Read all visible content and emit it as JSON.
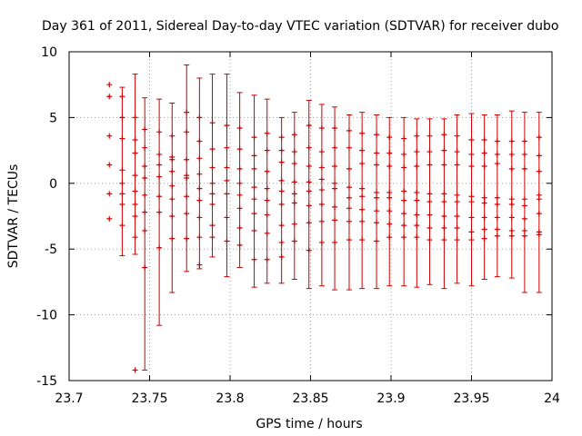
{
  "chart_data": {
    "type": "scatter",
    "title": "Day 361 of 2011, Sidereal Day-to-day VTEC variation (SDTVAR) for receiver dubo",
    "xlabel": "GPS time / hours",
    "ylabel": "SDTVAR / TECUs",
    "xlim": [
      23.7,
      24.0
    ],
    "ylim": [
      -15,
      10
    ],
    "xticks": [
      {
        "value": 23.7,
        "label": "23.7"
      },
      {
        "value": 23.75,
        "label": "23.75"
      },
      {
        "value": 23.8,
        "label": "23.8"
      },
      {
        "value": 23.85,
        "label": "23.85"
      },
      {
        "value": 23.9,
        "label": "23.9"
      },
      {
        "value": 23.95,
        "label": "23.95"
      },
      {
        "value": 24.0,
        "label": "24"
      }
    ],
    "yticks": [
      {
        "value": 10,
        "label": "10"
      },
      {
        "value": 5,
        "label": "5"
      },
      {
        "value": 0,
        "label": "0"
      },
      {
        "value": -5,
        "label": "-5"
      },
      {
        "value": -10,
        "label": "-10"
      },
      {
        "value": -15,
        "label": "-15"
      }
    ],
    "grid": true,
    "color": "#cc0000",
    "series": [
      {
        "x": 23.725,
        "low": 7.5,
        "high": 7.5,
        "points": [
          7.5,
          6.6,
          3.6,
          1.4,
          -0.8,
          -2.7
        ]
      },
      {
        "x": 23.733,
        "low": -5.5,
        "high": 7.3,
        "points": [
          6.6,
          5.0,
          3.4,
          1.0,
          0.0,
          -0.8,
          -1.6,
          -3.2
        ]
      },
      {
        "x": 23.741,
        "low": -5.4,
        "high": 8.3,
        "points": [
          5.0,
          3.3,
          2.3,
          0.6,
          -0.6,
          -1.6,
          -2.5,
          -4.1,
          -14.2
        ]
      },
      {
        "x": 23.747,
        "low": -14.2,
        "high": 6.5,
        "points": [
          4.1,
          2.7,
          1.3,
          0.4,
          -0.9,
          -2.2,
          -3.6,
          -6.4
        ]
      },
      {
        "x": 23.756,
        "low": -10.8,
        "high": 6.4,
        "points": [
          3.9,
          2.2,
          1.4,
          0.5,
          -1.0,
          -2.2,
          -4.9
        ]
      },
      {
        "x": 23.764,
        "low": -8.3,
        "high": 6.1,
        "points": [
          3.6,
          2.0,
          1.8,
          0.9,
          -0.2,
          -1.2,
          -2.5,
          -4.2
        ]
      },
      {
        "x": 23.773,
        "low": -6.7,
        "high": 9.0,
        "points": [
          5.4,
          3.9,
          1.8,
          0.6,
          0.4,
          -1.0,
          -2.3,
          -4.2
        ]
      },
      {
        "x": 23.781,
        "low": -6.5,
        "high": 8.0,
        "points": [
          5.0,
          3.2,
          1.9,
          0.7,
          -0.4,
          -1.3,
          -2.6,
          -4.1,
          -6.2
        ]
      },
      {
        "x": 23.789,
        "low": -5.6,
        "high": 8.3,
        "points": [
          4.6,
          2.6,
          1.2,
          0.0,
          -0.8,
          -1.6,
          -3.2,
          -4.1
        ]
      },
      {
        "x": 23.798,
        "low": -7.1,
        "high": 8.3,
        "points": [
          4.4,
          2.7,
          1.2,
          0.2,
          -0.8,
          -2.6,
          -4.4
        ]
      },
      {
        "x": 23.806,
        "low": -6.4,
        "high": 6.9,
        "points": [
          4.2,
          2.6,
          1.1,
          0.0,
          -0.9,
          -1.9,
          -3.4,
          -4.7
        ]
      },
      {
        "x": 23.815,
        "low": -7.9,
        "high": 6.7,
        "points": [
          3.5,
          2.1,
          1.1,
          -0.3,
          -1.2,
          -2.3,
          -3.6,
          -5.8
        ]
      },
      {
        "x": 23.823,
        "low": -7.6,
        "high": 6.4,
        "points": [
          3.8,
          2.5,
          0.9,
          -0.4,
          -1.3,
          -2.4,
          -3.8,
          -5.8
        ]
      },
      {
        "x": 23.832,
        "low": -7.6,
        "high": 5.0,
        "points": [
          3.5,
          2.5,
          1.6,
          0.2,
          -0.6,
          -1.6,
          -3.2,
          -4.5,
          -5.6
        ]
      },
      {
        "x": 23.84,
        "low": -7.3,
        "high": 5.4,
        "points": [
          3.7,
          2.4,
          1.5,
          0.1,
          -0.8,
          -1.5,
          -3.1,
          -4.4
        ]
      },
      {
        "x": 23.849,
        "low": -8.0,
        "high": 6.3,
        "points": [
          4.4,
          2.7,
          1.3,
          0.1,
          -0.6,
          -1.7,
          -3.0,
          -5.1
        ]
      },
      {
        "x": 23.857,
        "low": -7.8,
        "high": 6.0,
        "points": [
          4.2,
          2.4,
          1.2,
          0.3,
          -0.5,
          -1.6,
          -2.9,
          -4.5
        ]
      },
      {
        "x": 23.865,
        "low": -8.1,
        "high": 5.8,
        "points": [
          4.2,
          2.7,
          1.3,
          0.0,
          -0.4,
          -1.8,
          -2.8,
          -4.5
        ]
      },
      {
        "x": 23.874,
        "low": -8.1,
        "high": 5.2,
        "points": [
          4.0,
          2.7,
          1.1,
          -0.3,
          -1.1,
          -1.9,
          -2.9,
          -4.3
        ]
      },
      {
        "x": 23.882,
        "low": -8.0,
        "high": 5.4,
        "points": [
          3.8,
          2.5,
          1.5,
          -0.4,
          -1.0,
          -2.0,
          -2.9,
          -4.3
        ]
      },
      {
        "x": 23.891,
        "low": -8.0,
        "high": 5.2,
        "points": [
          3.7,
          2.3,
          1.4,
          -0.7,
          -1.1,
          -2.1,
          -3.0,
          -4.4
        ]
      },
      {
        "x": 23.899,
        "low": -7.8,
        "high": 5.0,
        "points": [
          3.5,
          2.3,
          1.3,
          -0.7,
          -1.1,
          -2.1,
          -3.1,
          -4.1
        ]
      },
      {
        "x": 23.908,
        "low": -7.8,
        "high": 5.0,
        "points": [
          3.4,
          2.2,
          1.2,
          -0.6,
          -1.3,
          -2.3,
          -3.2,
          -4.1
        ]
      },
      {
        "x": 23.916,
        "low": -7.9,
        "high": 4.9,
        "points": [
          3.6,
          2.4,
          1.3,
          -0.7,
          -1.3,
          -2.4,
          -3.2,
          -4.1
        ]
      },
      {
        "x": 23.924,
        "low": -7.7,
        "high": 4.9,
        "points": [
          3.6,
          2.4,
          1.4,
          -0.8,
          -1.4,
          -2.4,
          -3.4,
          -4.3
        ]
      },
      {
        "x": 23.933,
        "low": -8.0,
        "high": 4.9,
        "points": [
          3.7,
          2.5,
          1.4,
          -0.8,
          -1.4,
          -2.5,
          -3.4,
          -4.3
        ]
      },
      {
        "x": 23.941,
        "low": -7.6,
        "high": 5.2,
        "points": [
          3.6,
          2.4,
          1.4,
          -0.9,
          -1.4,
          -2.5,
          -3.4,
          -4.3
        ]
      },
      {
        "x": 23.95,
        "low": -7.8,
        "high": 5.3,
        "points": [
          3.3,
          2.2,
          1.3,
          -1.0,
          -1.4,
          -2.6,
          -3.7,
          -4.3
        ]
      },
      {
        "x": 23.958,
        "low": -7.3,
        "high": 5.2,
        "points": [
          3.3,
          2.3,
          1.3,
          -1.1,
          -1.5,
          -2.6,
          -3.5,
          -4.2
        ]
      },
      {
        "x": 23.966,
        "low": -7.1,
        "high": 5.2,
        "points": [
          3.2,
          2.2,
          1.5,
          -1.1,
          -1.6,
          -2.6,
          -3.5,
          -4.0
        ]
      },
      {
        "x": 23.975,
        "low": -7.2,
        "high": 5.5,
        "points": [
          3.2,
          2.2,
          1.1,
          -1.2,
          -1.6,
          -2.6,
          -3.6,
          -4.0
        ]
      },
      {
        "x": 23.983,
        "low": -8.3,
        "high": 5.4,
        "points": [
          3.2,
          2.2,
          1.1,
          -1.2,
          -1.7,
          -2.7,
          -3.6,
          -4.0
        ]
      },
      {
        "x": 23.992,
        "low": -8.3,
        "high": 5.4,
        "points": [
          3.5,
          2.1,
          0.9,
          -0.9,
          -1.2,
          -2.3,
          -3.7,
          -3.9
        ]
      }
    ]
  }
}
